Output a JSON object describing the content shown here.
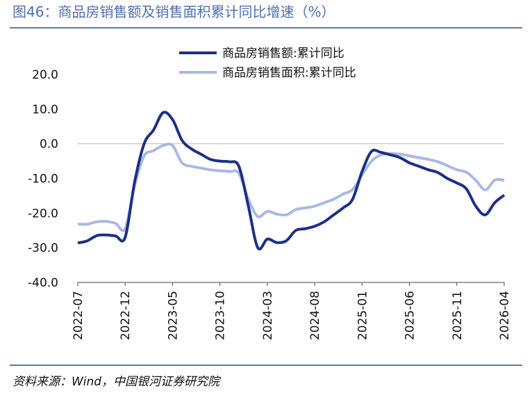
{
  "chart_data": {
    "type": "line",
    "title": "图46：商品房销售额及销售面积累计同比增速（%）",
    "source": "资料来源：Wind，中国银河证券研究院",
    "categories": [
      "2022-07",
      null,
      null,
      null,
      null,
      "2022-12",
      null,
      null,
      null,
      null,
      "2023-05",
      null,
      null,
      null,
      null,
      "2023-10",
      null,
      null,
      null,
      null,
      "2024-03",
      null,
      null,
      null,
      null,
      "2024-08",
      null,
      null,
      null,
      null,
      "2025-01",
      null,
      null,
      null,
      null,
      "2025-06",
      null,
      null,
      null,
      null,
      "2025-11",
      null,
      null,
      null,
      null,
      "2026-04"
    ],
    "series": [
      {
        "name": "商品房销售额:累计同比",
        "color": "#1c2f88",
        "values": [
          -28.6,
          -28,
          -26.5,
          -26.3,
          -26.6,
          -27,
          -11,
          0,
          4,
          9,
          7,
          1,
          -1.5,
          -3,
          -4.5,
          -5,
          -5.2,
          -6.5,
          -18,
          -30,
          -27.5,
          -28.5,
          -28,
          -25,
          -24.5,
          -23.8,
          -22.5,
          -20.5,
          -18.5,
          -16,
          -8,
          -2.2,
          -2.5,
          -3.2,
          -4,
          -5.5,
          -6.5,
          -7.5,
          -8.3,
          -10,
          -11.3,
          -13,
          -18,
          -20.5,
          -17,
          -14.8
        ]
      },
      {
        "name": "商品房销售面积:累计同比",
        "color": "#a9b9e4",
        "values": [
          -23.2,
          -23.2,
          -22.5,
          -22.4,
          -23,
          -24.5,
          -12,
          -3.5,
          -2,
          -0.5,
          -0.5,
          -5.5,
          -6.5,
          -7,
          -7.5,
          -7.8,
          -8,
          -8.5,
          -16,
          -21,
          -19.5,
          -20.3,
          -20.5,
          -19,
          -18.5,
          -18,
          -17,
          -16,
          -14.5,
          -13.2,
          -9,
          -5,
          -3.2,
          -2.8,
          -3,
          -3.5,
          -4,
          -4.5,
          -5.2,
          -6.3,
          -7.5,
          -8.2,
          -10.5,
          -13.3,
          -10.5,
          -10.5
        ]
      }
    ],
    "ylim": [
      -40,
      20
    ],
    "yticks": [
      {
        "value": -40,
        "label": "-40.0"
      },
      {
        "value": -30,
        "label": "-30.0"
      },
      {
        "value": -20,
        "label": "-20.0"
      },
      {
        "value": -10,
        "label": "-10.0"
      },
      {
        "value": 0,
        "label": "0.0"
      },
      {
        "value": 10,
        "label": "10.0"
      },
      {
        "value": 20,
        "label": "20.0"
      }
    ]
  }
}
